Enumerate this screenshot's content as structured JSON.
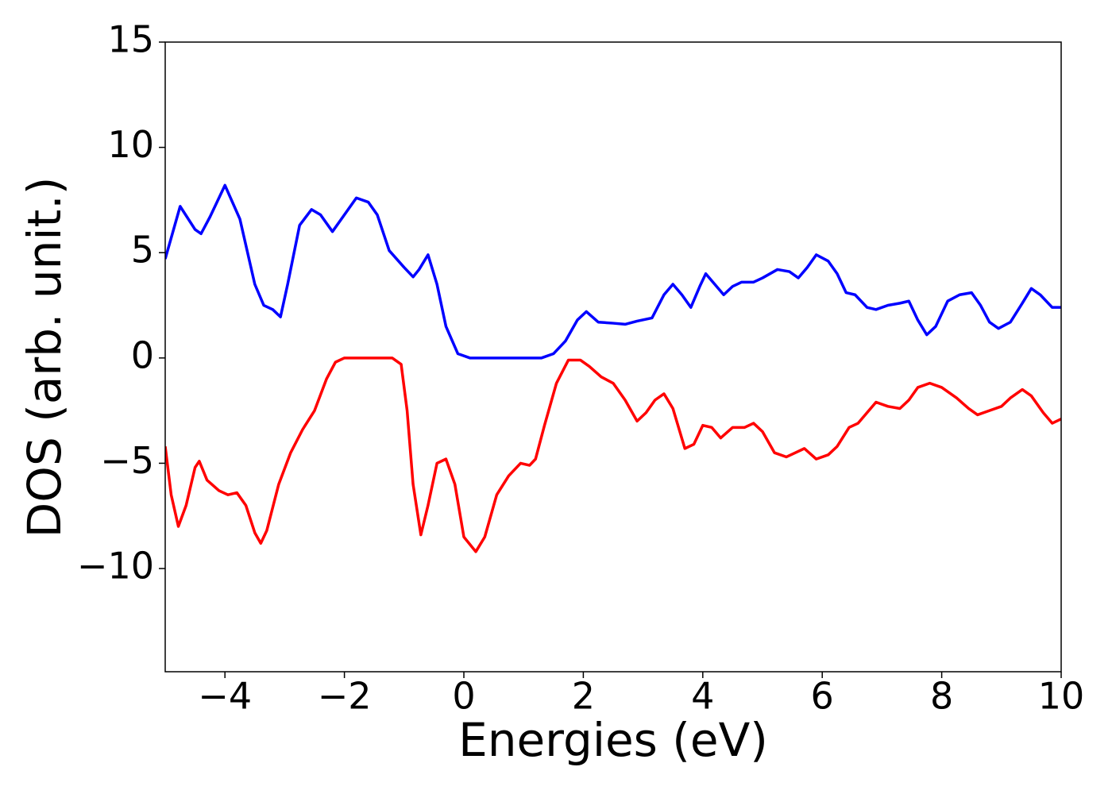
{
  "chart_data": {
    "type": "line",
    "xlabel": "Energies (eV)",
    "ylabel": "DOS (arb. unit.)",
    "xlim": [
      -5,
      10
    ],
    "xticks": [
      {
        "value": -4,
        "label": "−4"
      },
      {
        "value": -2,
        "label": "−2"
      },
      0,
      2,
      4,
      6,
      8,
      10
    ],
    "ylim": [
      -14.9,
      15
    ],
    "yticks": [
      {
        "value": -10,
        "label": "−10"
      },
      {
        "value": -5,
        "label": "−5"
      },
      0,
      5,
      10,
      15
    ],
    "grid": false,
    "series": [
      {
        "color": "#0000ff",
        "x": [
          -5,
          -4.75,
          -4.5,
          -4.4,
          -4.25,
          -4.0,
          -3.75,
          -3.5,
          -3.35,
          -3.2,
          -3.07,
          -2.95,
          -2.75,
          -2.55,
          -2.4,
          -2.2,
          -2.0,
          -1.8,
          -1.6,
          -1.45,
          -1.25,
          -1.0,
          -0.85,
          -0.75,
          -0.6,
          -0.45,
          -0.3,
          -0.1,
          0.1,
          1.3,
          1.5,
          1.7,
          1.9,
          2.05,
          2.25,
          2.5,
          2.7,
          2.9,
          3.15,
          3.35,
          3.5,
          3.65,
          3.8,
          3.95,
          4.05,
          4.2,
          4.35,
          4.5,
          4.65,
          4.85,
          5.0,
          5.25,
          5.45,
          5.6,
          5.75,
          5.9,
          6.1,
          6.25,
          6.4,
          6.55,
          6.75,
          6.9,
          7.1,
          7.3,
          7.45,
          7.6,
          7.75,
          7.9,
          8.1,
          8.3,
          8.5,
          8.65,
          8.8,
          8.95,
          9.15,
          9.35,
          9.5,
          9.65,
          9.85,
          10
        ],
        "values": [
          4.7,
          7.2,
          6.1,
          5.9,
          6.7,
          8.2,
          6.6,
          3.5,
          2.5,
          2.3,
          1.95,
          3.5,
          6.3,
          7.05,
          6.8,
          6.0,
          6.8,
          7.6,
          7.4,
          6.8,
          5.1,
          4.3,
          3.85,
          4.2,
          4.9,
          3.5,
          1.5,
          0.2,
          0.0,
          0.0,
          0.2,
          0.8,
          1.8,
          2.2,
          1.7,
          1.65,
          1.6,
          1.75,
          1.9,
          3.0,
          3.5,
          3.0,
          2.4,
          3.4,
          4.0,
          3.5,
          3.0,
          3.4,
          3.6,
          3.6,
          3.8,
          4.2,
          4.1,
          3.8,
          4.3,
          4.9,
          4.6,
          4.0,
          3.1,
          3.0,
          2.4,
          2.3,
          2.5,
          2.6,
          2.7,
          1.8,
          1.1,
          1.5,
          2.7,
          3.0,
          3.1,
          2.5,
          1.7,
          1.4,
          1.7,
          2.6,
          3.3,
          3.0,
          2.4,
          2.4
        ]
      },
      {
        "color": "#ff0000",
        "x": [
          -5,
          -4.9,
          -4.78,
          -4.65,
          -4.5,
          -4.43,
          -4.3,
          -4.1,
          -3.95,
          -3.8,
          -3.65,
          -3.5,
          -3.4,
          -3.3,
          -3.1,
          -2.9,
          -2.7,
          -2.5,
          -2.3,
          -2.15,
          -2.0,
          -1.2,
          -1.05,
          -0.95,
          -0.85,
          -0.72,
          -0.6,
          -0.45,
          -0.3,
          -0.15,
          0.0,
          0.2,
          0.35,
          0.55,
          0.75,
          0.95,
          1.1,
          1.2,
          1.35,
          1.55,
          1.75,
          1.95,
          2.1,
          2.3,
          2.5,
          2.7,
          2.9,
          3.05,
          3.2,
          3.35,
          3.5,
          3.7,
          3.85,
          4.0,
          4.15,
          4.3,
          4.5,
          4.7,
          4.85,
          5.0,
          5.2,
          5.4,
          5.55,
          5.7,
          5.9,
          6.1,
          6.25,
          6.45,
          6.6,
          6.75,
          6.9,
          7.1,
          7.3,
          7.45,
          7.6,
          7.8,
          8.0,
          8.25,
          8.45,
          8.6,
          8.8,
          9.0,
          9.15,
          9.35,
          9.5,
          9.7,
          9.85,
          10
        ],
        "values": [
          -4.2,
          -6.5,
          -8.0,
          -7.0,
          -5.2,
          -4.9,
          -5.8,
          -6.3,
          -6.5,
          -6.4,
          -7.0,
          -8.3,
          -8.8,
          -8.2,
          -6.0,
          -4.5,
          -3.4,
          -2.5,
          -1.0,
          -0.2,
          0.0,
          0.0,
          -0.3,
          -2.5,
          -6.0,
          -8.4,
          -7.0,
          -5.0,
          -4.8,
          -6.0,
          -8.5,
          -9.2,
          -8.5,
          -6.5,
          -5.6,
          -5.0,
          -5.1,
          -4.8,
          -3.2,
          -1.2,
          -0.1,
          -0.1,
          -0.4,
          -0.9,
          -1.2,
          -2.0,
          -3.0,
          -2.6,
          -2.0,
          -1.7,
          -2.4,
          -4.3,
          -4.1,
          -3.2,
          -3.3,
          -3.8,
          -3.3,
          -3.3,
          -3.1,
          -3.5,
          -4.5,
          -4.7,
          -4.5,
          -4.3,
          -4.8,
          -4.6,
          -4.2,
          -3.3,
          -3.1,
          -2.6,
          -2.1,
          -2.3,
          -2.4,
          -2.0,
          -1.4,
          -1.2,
          -1.4,
          -1.9,
          -2.4,
          -2.7,
          -2.5,
          -2.3,
          -1.9,
          -1.5,
          -1.8,
          -2.6,
          -3.1,
          -2.9
        ]
      }
    ]
  }
}
